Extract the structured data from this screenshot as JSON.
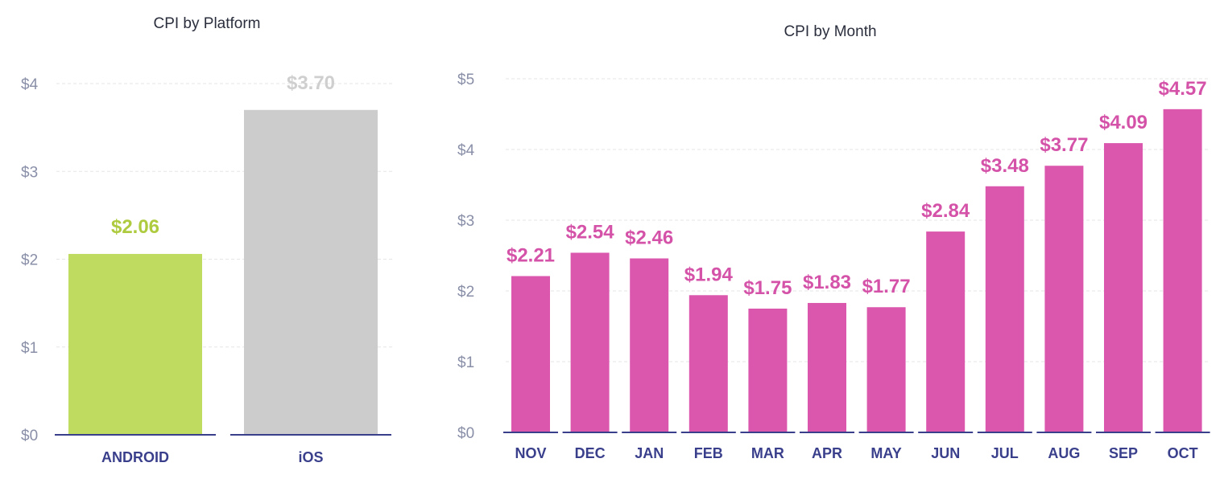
{
  "chart_data": [
    {
      "type": "bar",
      "title": "CPI by Platform",
      "categories": [
        "ANDROID",
        "iOS"
      ],
      "values": [
        2.06,
        3.7
      ],
      "value_labels": [
        "$2.06",
        "$3.70"
      ],
      "colors": [
        "#bfdb60",
        "#cccccc"
      ],
      "label_colors": [
        "#aecb3f",
        "#cfcfcf"
      ],
      "yticks": [
        "$0",
        "$1",
        "$2",
        "$3",
        "$4"
      ],
      "ylim": [
        0,
        4
      ],
      "grid": true
    },
    {
      "type": "bar",
      "title": "CPI by Month",
      "categories": [
        "NOV",
        "DEC",
        "JAN",
        "FEB",
        "MAR",
        "APR",
        "MAY",
        "JUN",
        "JUL",
        "AUG",
        "SEP",
        "OCT"
      ],
      "values": [
        2.21,
        2.54,
        2.46,
        1.94,
        1.75,
        1.83,
        1.77,
        2.84,
        3.48,
        3.77,
        4.09,
        4.57
      ],
      "value_labels": [
        "$2.21",
        "$2.54",
        "$2.46",
        "$1.94",
        "$1.75",
        "$1.83",
        "$1.77",
        "$2.84",
        "$3.48",
        "$3.77",
        "$4.09",
        "$4.57"
      ],
      "color": "#db57ae",
      "label_color": "#d452a8",
      "yticks": [
        "$0",
        "$1",
        "$2",
        "$3",
        "$4",
        "$5"
      ],
      "ylim": [
        0,
        5
      ],
      "grid": true
    }
  ]
}
